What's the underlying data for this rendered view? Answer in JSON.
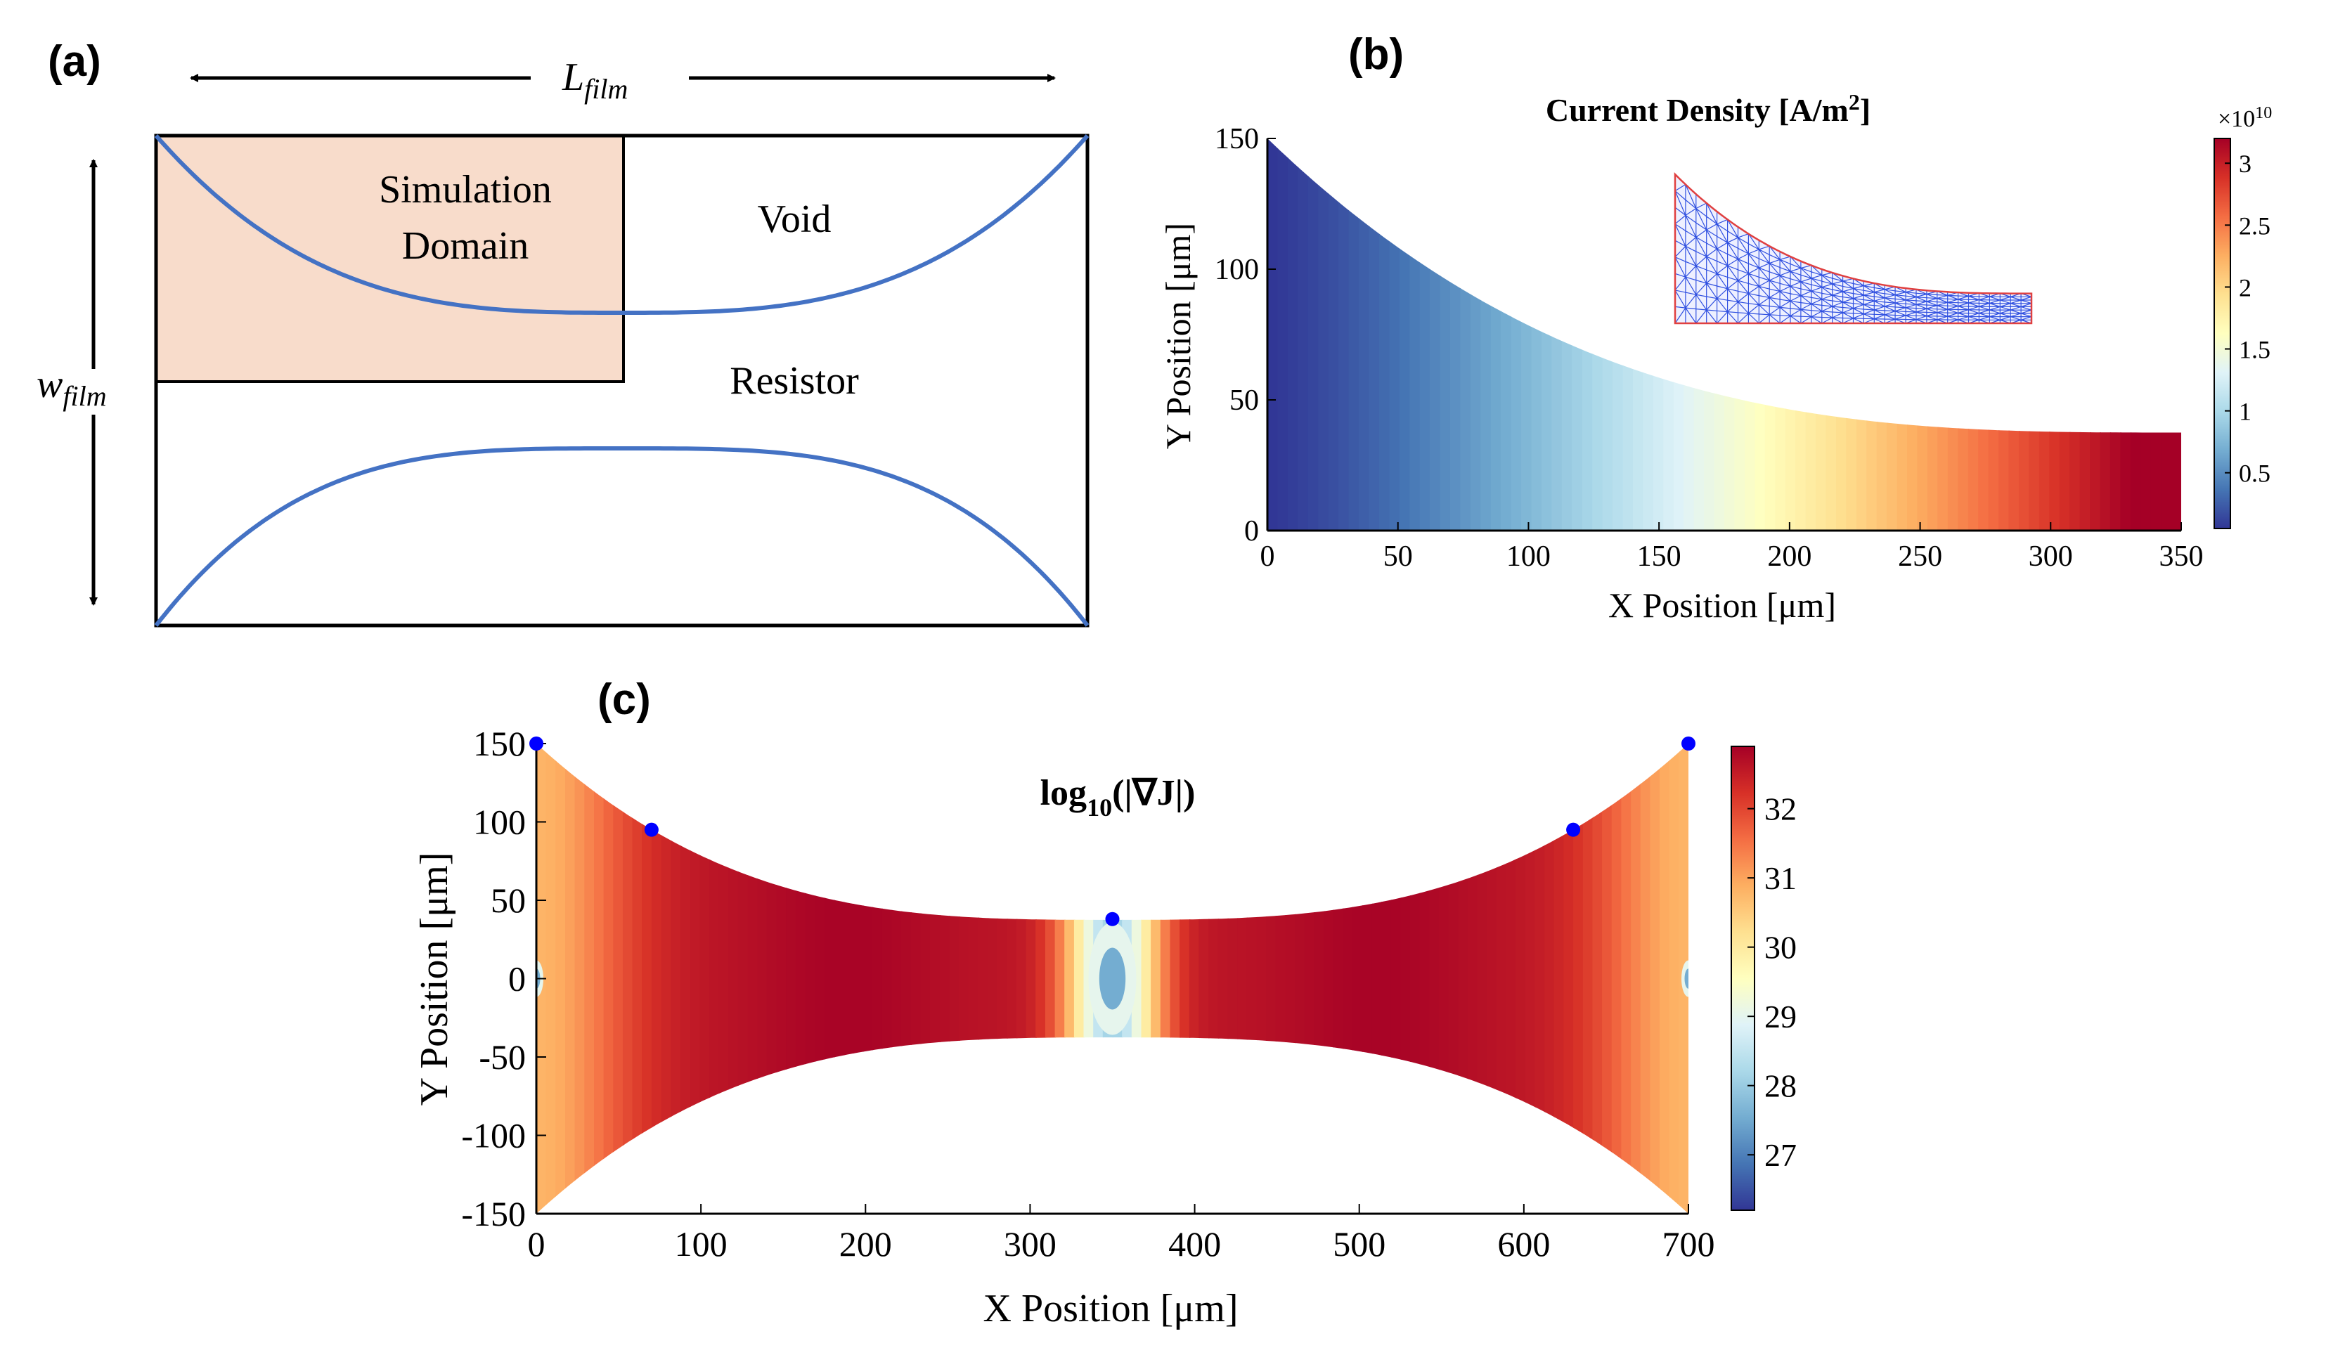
{
  "colors": {
    "curve": "#4472C4",
    "domain_fill": "#F8DCCB",
    "dot": "#0000FF",
    "mesh": "#3050E0",
    "mesh_edge": "#E04040"
  },
  "panel_a": {
    "label": "(a)",
    "length_symbol": "L",
    "length_sub": "film",
    "width_symbol": "w",
    "width_sub": "film",
    "domain_line1": "Simulation",
    "domain_line2": "Domain",
    "void": "Void",
    "resistor": "Resistor"
  },
  "chart_data": [
    {
      "id": "b",
      "type": "heatmap",
      "panel_label": "(b)",
      "title_main": "Current Density [A/m",
      "title_sup": "2",
      "title_end": "]",
      "xlabel": "X Position [μm]",
      "ylabel": "Y Position [μm]",
      "xlim": [
        0,
        350
      ],
      "ylim": [
        0,
        150
      ],
      "xticks": [
        "0",
        "50",
        "100",
        "150",
        "200",
        "250",
        "300",
        "350"
      ],
      "yticks": [
        "0",
        "50",
        "100",
        "150"
      ],
      "boundary_half_width": "w(x) = 37.5 + 112.5*((350-x)/350)^3, x in [0,350]",
      "value_trend": "increases from ~0.1e10 at x=0 to ~3.2e10 at x=350",
      "colorbar": {
        "multiplier": "×10",
        "multiplier_exp": "10",
        "min": 0.05,
        "max": 3.2,
        "ticks": [
          "0.5",
          "1",
          "1.5",
          "2",
          "2.5",
          "3"
        ],
        "colormap": "RdYlBu_r"
      },
      "inset": "triangular finite-element mesh of the simulation domain"
    },
    {
      "id": "c",
      "type": "heatmap",
      "panel_label": "(c)",
      "title_main": "log",
      "title_sub": "10",
      "title_end": "(|∇J|)",
      "xlabel": "X Position [μm]",
      "ylabel": "Y Position [μm]",
      "xlim": [
        0,
        700
      ],
      "ylim": [
        -150,
        150
      ],
      "xticks": [
        "0",
        "100",
        "200",
        "300",
        "400",
        "500",
        "600",
        "700"
      ],
      "yticks": [
        "150",
        "100",
        "50",
        "0",
        "-50",
        "-100",
        "-150"
      ],
      "colorbar": {
        "min": 26.2,
        "max": 32.9,
        "ticks": [
          "27",
          "28",
          "29",
          "30",
          "31",
          "32"
        ],
        "colormap": "RdYlBu_r"
      },
      "markers": [
        {
          "x": 0,
          "y": 150
        },
        {
          "x": 70,
          "y": 95
        },
        {
          "x": 350,
          "y": 38
        },
        {
          "x": 630,
          "y": 95
        },
        {
          "x": 700,
          "y": 150
        }
      ],
      "minima": [
        {
          "x": 0,
          "y": 0
        },
        {
          "x": 350,
          "y": 0
        },
        {
          "x": 700,
          "y": 0
        }
      ]
    }
  ]
}
